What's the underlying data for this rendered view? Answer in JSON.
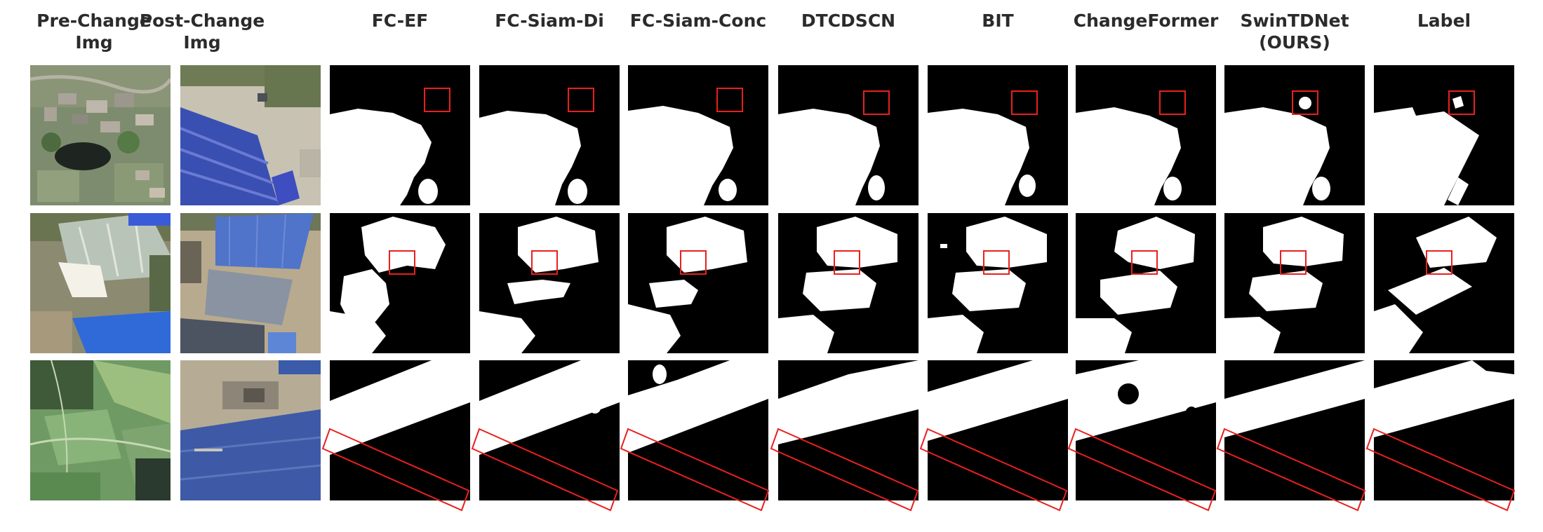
{
  "figure": {
    "columns": [
      {
        "id": "pre",
        "label": "Pre-Change\nImg"
      },
      {
        "id": "post",
        "label": "Post-Change\nImg"
      },
      {
        "id": "fcef",
        "label": "FC-EF"
      },
      {
        "id": "fcsiamdi",
        "label": "FC-Siam-Di"
      },
      {
        "id": "fcsiamconc",
        "label": "FC-Siam-Conc"
      },
      {
        "id": "dtcdscn",
        "label": "DTCDSCN"
      },
      {
        "id": "bit",
        "label": "BIT"
      },
      {
        "id": "changeformer",
        "label": "ChangeFormer"
      },
      {
        "id": "swintdnet",
        "label": "SwinTDNet\n(OURS)"
      },
      {
        "id": "label",
        "label": "Label"
      }
    ],
    "colors": {
      "mask_background": "#000000",
      "mask_change": "#ffffff",
      "highlight_box": "#e8201e",
      "header_text": "#2b2b2b"
    }
  }
}
